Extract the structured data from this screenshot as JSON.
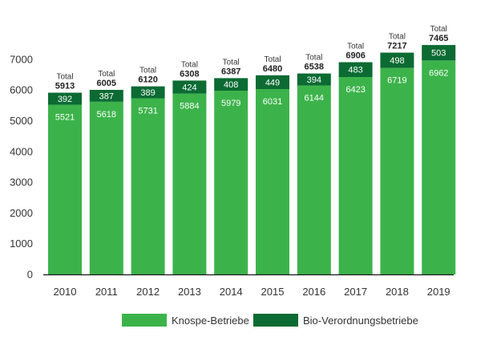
{
  "chart_data": {
    "type": "bar",
    "stacked": true,
    "categories": [
      "2010",
      "2011",
      "2012",
      "2013",
      "2014",
      "2015",
      "2016",
      "2017",
      "2018",
      "2019"
    ],
    "series": [
      {
        "name": "Knospe-Betriebe",
        "color": "#3cb34a",
        "values": [
          5521,
          5618,
          5731,
          5884,
          5979,
          6031,
          6144,
          6423,
          6719,
          6962
        ]
      },
      {
        "name": "Bio-Verordnungsbetriebe",
        "color": "#0b6b33",
        "values": [
          392,
          387,
          389,
          424,
          408,
          449,
          394,
          483,
          498,
          503
        ]
      }
    ],
    "total_label": "Total",
    "totals": [
      5913,
      6005,
      6120,
      6308,
      6387,
      6480,
      6538,
      6906,
      7217,
      7465
    ],
    "yticks": [
      0,
      1000,
      2000,
      3000,
      4000,
      5000,
      6000,
      7000
    ],
    "ylim": [
      0,
      7000
    ],
    "grid": false,
    "legend_position": "bottom"
  }
}
